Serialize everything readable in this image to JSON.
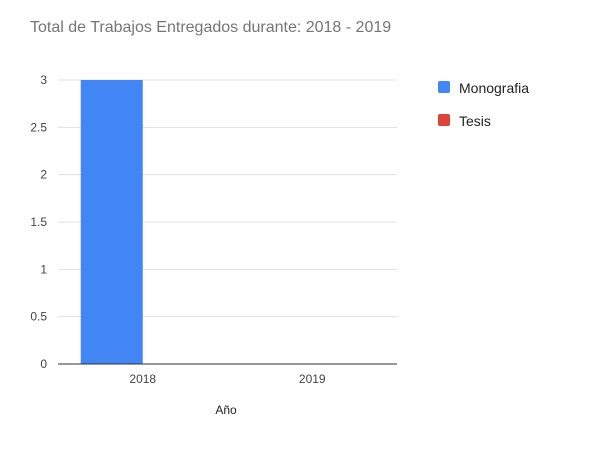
{
  "chart_data": {
    "type": "bar",
    "title": "Total de Trabajos Entregados durante: 2018 - 2019",
    "xlabel": "Año",
    "ylabel": "",
    "categories": [
      "2018",
      "2019"
    ],
    "series": [
      {
        "name": "Monografia",
        "color": "#4285f4",
        "values": [
          3,
          0
        ]
      },
      {
        "name": "Tesis",
        "color": "#db4437",
        "values": [
          0,
          0
        ]
      }
    ],
    "ylim": [
      0,
      3
    ],
    "yticks": [
      "0",
      "0.5",
      "1",
      "1.5",
      "2",
      "2.5",
      "3"
    ],
    "grid": true,
    "legend_position": "right"
  }
}
